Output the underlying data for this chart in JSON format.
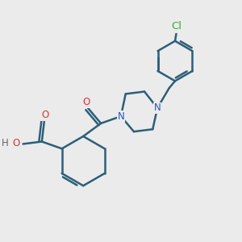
{
  "background_color": "#ebebeb",
  "bond_color": "#2c5f7a",
  "bond_width": 1.8,
  "atom_colors": {
    "O": "#e83030",
    "N": "#2255cc",
    "Cl": "#3aaa3a",
    "H": "#666666"
  },
  "font_size": 8.5,
  "figsize": [
    3.0,
    3.0
  ],
  "dpi": 100
}
